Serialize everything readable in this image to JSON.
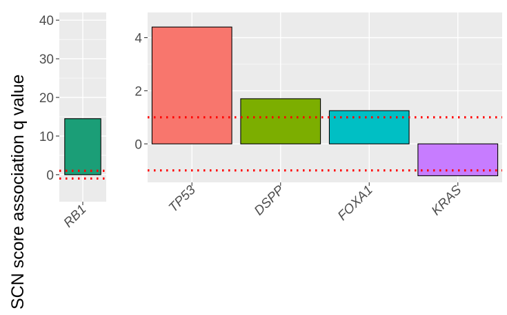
{
  "ylabel": "SCN score association q value",
  "chart_data": [
    {
      "type": "bar",
      "categories": [
        "RB1"
      ],
      "values": [
        14.5
      ],
      "colors": [
        "#1b9e77"
      ],
      "ylim": [
        -7,
        42
      ],
      "yticks": [
        0,
        10,
        20,
        30,
        40
      ],
      "ytick_labels": [
        "0",
        "10",
        "20",
        "30",
        "40"
      ],
      "reference_lines": [
        1,
        -1
      ],
      "grid": true
    },
    {
      "type": "bar",
      "categories": [
        "TP53",
        "DSPP",
        "FOXA1",
        "KRAS"
      ],
      "values": [
        4.4,
        1.7,
        1.25,
        -1.2
      ],
      "colors": [
        "#f8766d",
        "#7cae00",
        "#00bfc4",
        "#c77cff"
      ],
      "ylim": [
        -1.45,
        4.95
      ],
      "yticks": [
        0,
        2,
        4
      ],
      "ytick_labels": [
        "0",
        "2",
        "4"
      ],
      "reference_lines": [
        1,
        -1
      ],
      "grid": true
    }
  ]
}
